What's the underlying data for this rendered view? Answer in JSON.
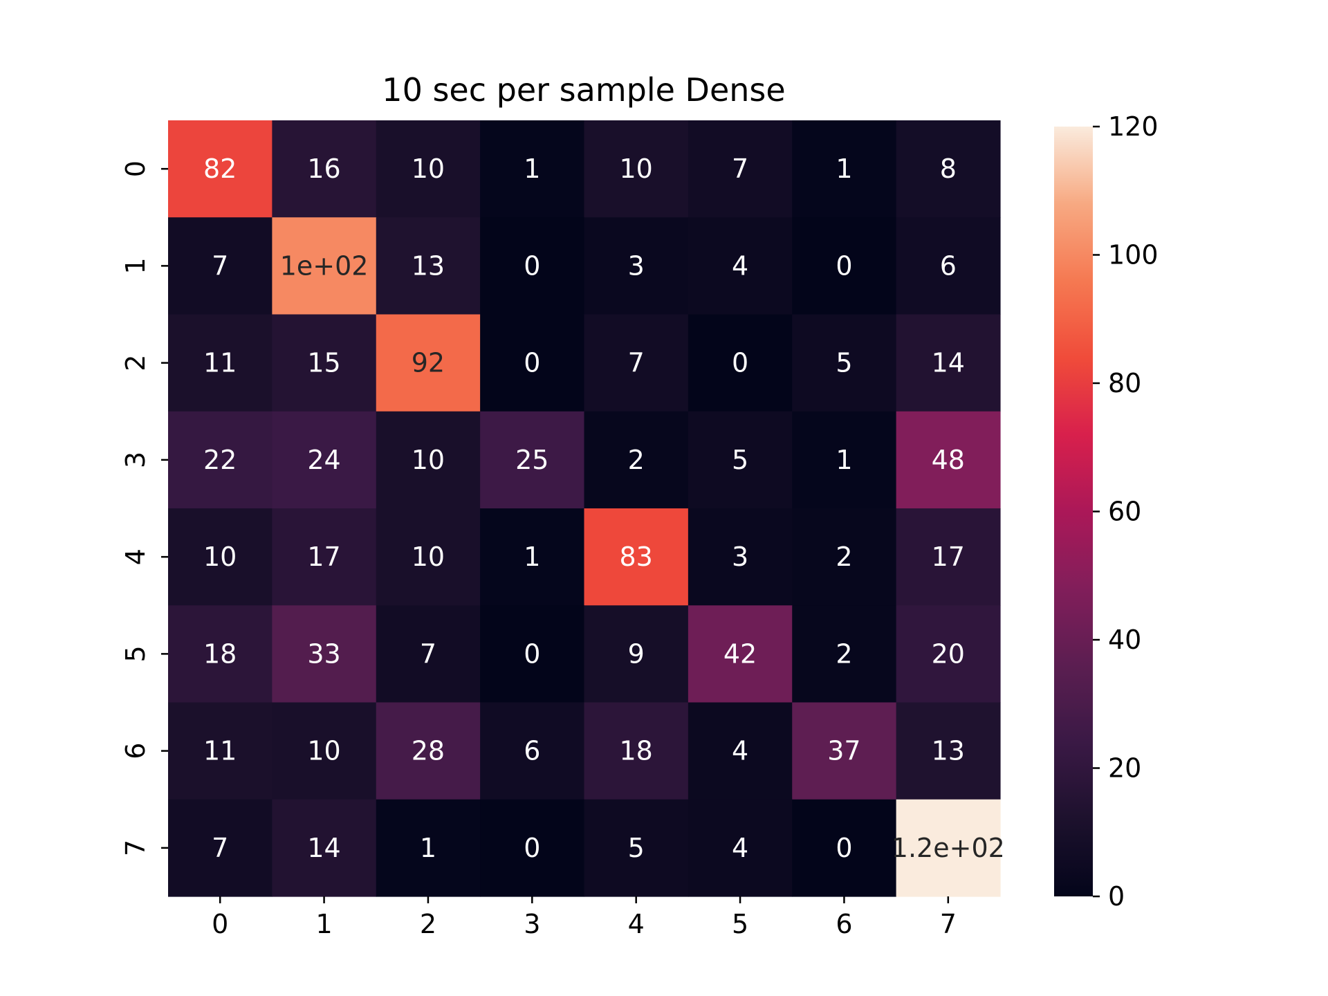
{
  "chart_data": {
    "type": "heatmap",
    "title": "10 sec per sample Dense",
    "xlabel": "",
    "ylabel": "",
    "x_categories": [
      "0",
      "1",
      "2",
      "3",
      "4",
      "5",
      "6",
      "7"
    ],
    "y_categories": [
      "0",
      "1",
      "2",
      "3",
      "4",
      "5",
      "6",
      "7"
    ],
    "values": [
      [
        82,
        16,
        10,
        1,
        10,
        7,
        1,
        8
      ],
      [
        7,
        100,
        13,
        0,
        3,
        4,
        0,
        6
      ],
      [
        11,
        15,
        92,
        0,
        7,
        0,
        5,
        14
      ],
      [
        22,
        24,
        10,
        25,
        2,
        5,
        1,
        48
      ],
      [
        10,
        17,
        10,
        1,
        83,
        3,
        2,
        17
      ],
      [
        18,
        33,
        7,
        0,
        9,
        42,
        2,
        20
      ],
      [
        11,
        10,
        28,
        6,
        18,
        4,
        37,
        13
      ],
      [
        7,
        14,
        1,
        0,
        5,
        4,
        0,
        120
      ]
    ],
    "annotations": [
      [
        "82",
        "16",
        "10",
        "1",
        "10",
        "7",
        "1",
        "8"
      ],
      [
        "7",
        "1e+02",
        "13",
        "0",
        "3",
        "4",
        "0",
        "6"
      ],
      [
        "11",
        "15",
        "92",
        "0",
        "7",
        "0",
        "5",
        "14"
      ],
      [
        "22",
        "24",
        "10",
        "25",
        "2",
        "5",
        "1",
        "48"
      ],
      [
        "10",
        "17",
        "10",
        "1",
        "83",
        "3",
        "2",
        "17"
      ],
      [
        "18",
        "33",
        "7",
        "0",
        "9",
        "42",
        "2",
        "20"
      ],
      [
        "11",
        "10",
        "28",
        "6",
        "18",
        "4",
        "37",
        "13"
      ],
      [
        "7",
        "14",
        "1",
        "0",
        "5",
        "4",
        "0",
        "1.2e+02"
      ]
    ],
    "colorbar": {
      "colormap": "rocket",
      "range": [
        0,
        120
      ],
      "ticks": [
        0,
        20,
        40,
        60,
        80,
        100,
        120
      ],
      "tick_labels": [
        "0",
        "20",
        "40",
        "60",
        "80",
        "100",
        "120"
      ]
    },
    "grid": false,
    "legend": "colorbar-right"
  }
}
